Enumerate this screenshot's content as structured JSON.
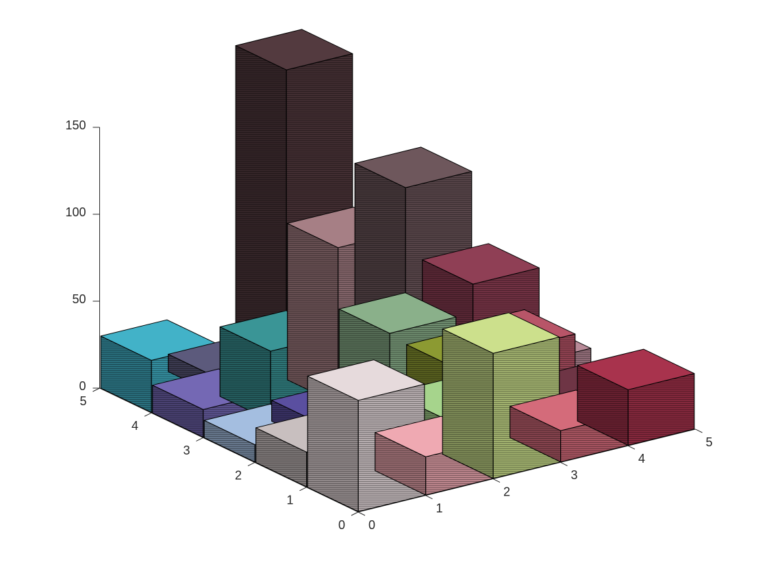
{
  "chart_data": {
    "type": "bar3d",
    "title": "",
    "xlabel": "",
    "ylabel": "",
    "zlabel": "",
    "xlim": [
      0,
      5
    ],
    "ylim": [
      0,
      5
    ],
    "zlim": [
      0,
      150
    ],
    "grid": false,
    "x_ticks": [
      "0",
      "1",
      "2",
      "3",
      "4",
      "5"
    ],
    "y_ticks": [
      "0",
      "1",
      "2",
      "3",
      "4",
      "5"
    ],
    "z_ticks": [
      "0",
      "50",
      "100",
      "150"
    ],
    "bars": [
      {
        "x": 0,
        "y": 0,
        "value": 64,
        "color": "#E6DADC"
      },
      {
        "x": 0,
        "y": 1,
        "value": 20,
        "color": "#C8BFBF"
      },
      {
        "x": 0,
        "y": 2,
        "value": 10,
        "color": "#A4BEE0"
      },
      {
        "x": 0,
        "y": 3,
        "value": 16,
        "color": "#7468B4"
      },
      {
        "x": 0,
        "y": 4,
        "value": 30,
        "color": "#42B2C8"
      },
      {
        "x": 1,
        "y": 0,
        "value": 22,
        "color": "#EFA9B2"
      },
      {
        "x": 1,
        "y": 1,
        "value": 21,
        "color": "#A6A0A0"
      },
      {
        "x": 1,
        "y": 2,
        "value": 12,
        "color": "#5A4FA0"
      },
      {
        "x": 1,
        "y": 3,
        "value": 40,
        "color": "#3A9596"
      },
      {
        "x": 1,
        "y": 4,
        "value": 10,
        "color": "#5C5A7C"
      },
      {
        "x": 2,
        "y": 0,
        "value": 72,
        "color": "#CCE08C"
      },
      {
        "x": 2,
        "y": 1,
        "value": 21,
        "color": "#A6D48C"
      },
      {
        "x": 2,
        "y": 2,
        "value": 55,
        "color": "#8AB08A"
      },
      {
        "x": 2,
        "y": 3,
        "value": 90,
        "color": "#A67F85"
      },
      {
        "x": 2,
        "y": 4,
        "value": 178,
        "color": "#533A3F"
      },
      {
        "x": 3,
        "y": 0,
        "value": 18,
        "color": "#D46B7A"
      },
      {
        "x": 3,
        "y": 1,
        "value": 50,
        "color": "#B85568"
      },
      {
        "x": 3,
        "y": 2,
        "value": 25,
        "color": "#8C9A32"
      },
      {
        "x": 3,
        "y": 3,
        "value": 115,
        "color": "#6E575C"
      },
      {
        "x": 3,
        "y": 4,
        "value": 55,
        "color": "#8E6B72"
      },
      {
        "x": 4,
        "y": 0,
        "value": 32,
        "color": "#A8334D"
      },
      {
        "x": 4,
        "y": 1,
        "value": 10,
        "color": "#6E3545"
      },
      {
        "x": 4,
        "y": 2,
        "value": 18,
        "color": "#B88A98"
      },
      {
        "x": 4,
        "y": 3,
        "value": 50,
        "color": "#8F3F55"
      },
      {
        "x": 4,
        "y": 4,
        "value": 20,
        "color": "#7A5E66"
      }
    ]
  }
}
